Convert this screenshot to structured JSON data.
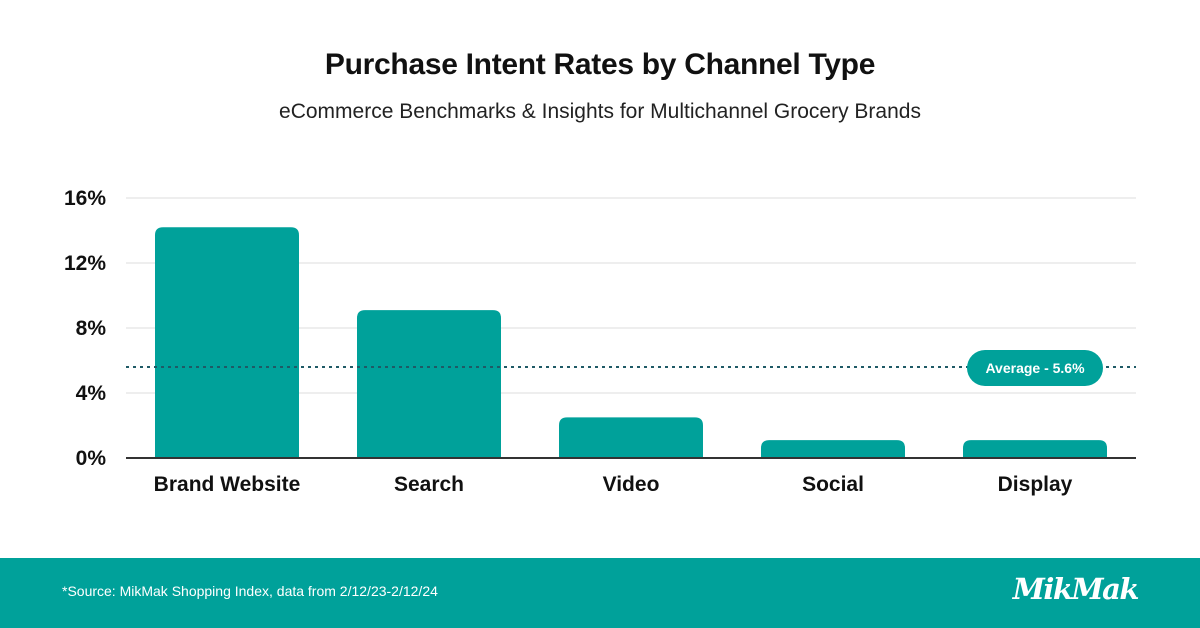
{
  "title": "Purchase Intent Rates by Channel Type",
  "subtitle": "eCommerce Benchmarks & Insights for Multichannel Grocery Brands",
  "footer": {
    "source": "*Source: MikMak Shopping Index, data from 2/12/23-2/12/24",
    "logo": "MikMak"
  },
  "colors": {
    "bar": "#00a19a",
    "footer_bg": "#00a19a",
    "average_line": "#1f5a66",
    "grid": "#dddddd",
    "axis": "#333333"
  },
  "chart_data": {
    "type": "bar",
    "categories": [
      "Brand Website",
      "Search",
      "Video",
      "Social",
      "Display"
    ],
    "values": [
      14.2,
      9.1,
      2.5,
      1.1,
      1.1
    ],
    "ylim": [
      0,
      16
    ],
    "yticks": [
      0,
      4,
      8,
      12,
      16
    ],
    "ytick_labels": [
      "0%",
      "4%",
      "8%",
      "12%",
      "16%"
    ],
    "grid": true,
    "reference_line": {
      "value": 5.6,
      "label": "Average - 5.6%",
      "style": "dotted"
    }
  }
}
